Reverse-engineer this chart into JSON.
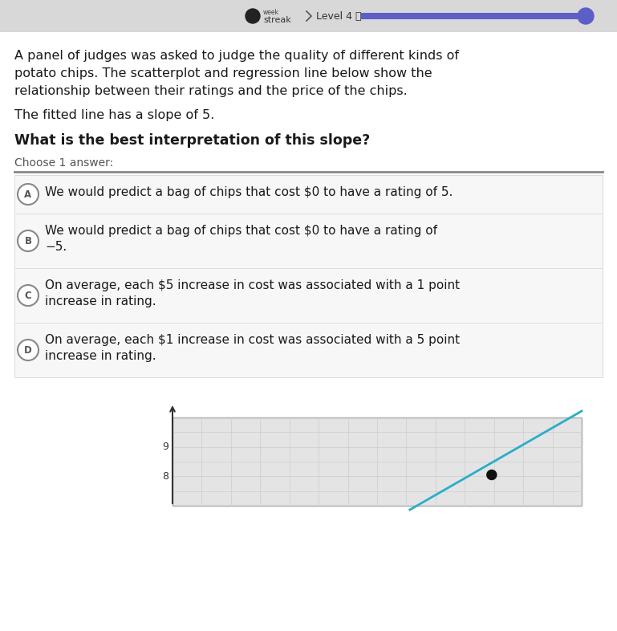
{
  "bg_color": "#ebebeb",
  "header_bg": "#d8d8d8",
  "streak_color": "#5b5fc7",
  "progress_color": "#5b5fc7",
  "body_bg": "#ffffff",
  "body_text_lines": [
    "A panel of judges was asked to judge the quality of different kinds of",
    "potato chips. The scatterplot and regression line below show the",
    "relationship between their ratings and the price of the chips."
  ],
  "slope_text": "The fitted line has a slope of 5.",
  "question_text": "What is the best interpretation of this slope?",
  "choose_text": "Choose 1 answer:",
  "options": [
    {
      "letter": "A",
      "lines": [
        "We would predict a bag of chips that cost $0 to have a rating of 5."
      ]
    },
    {
      "letter": "B",
      "lines": [
        "We would predict a bag of chips that cost $0 to have a rating of",
        "−5."
      ]
    },
    {
      "letter": "C",
      "lines": [
        "On average, each $5 increase in cost was associated with a 1 point",
        "increase in rating."
      ]
    },
    {
      "letter": "D",
      "lines": [
        "On average, each $1 increase in cost was associated with a 5 point",
        "increase in rating."
      ]
    }
  ],
  "line_color": "#29aec7",
  "dot_color": "#111111",
  "grid_color": "#cccccc",
  "chart_bg": "#e4e4e4",
  "figsize": [
    7.69,
    7.86
  ],
  "dpi": 100
}
